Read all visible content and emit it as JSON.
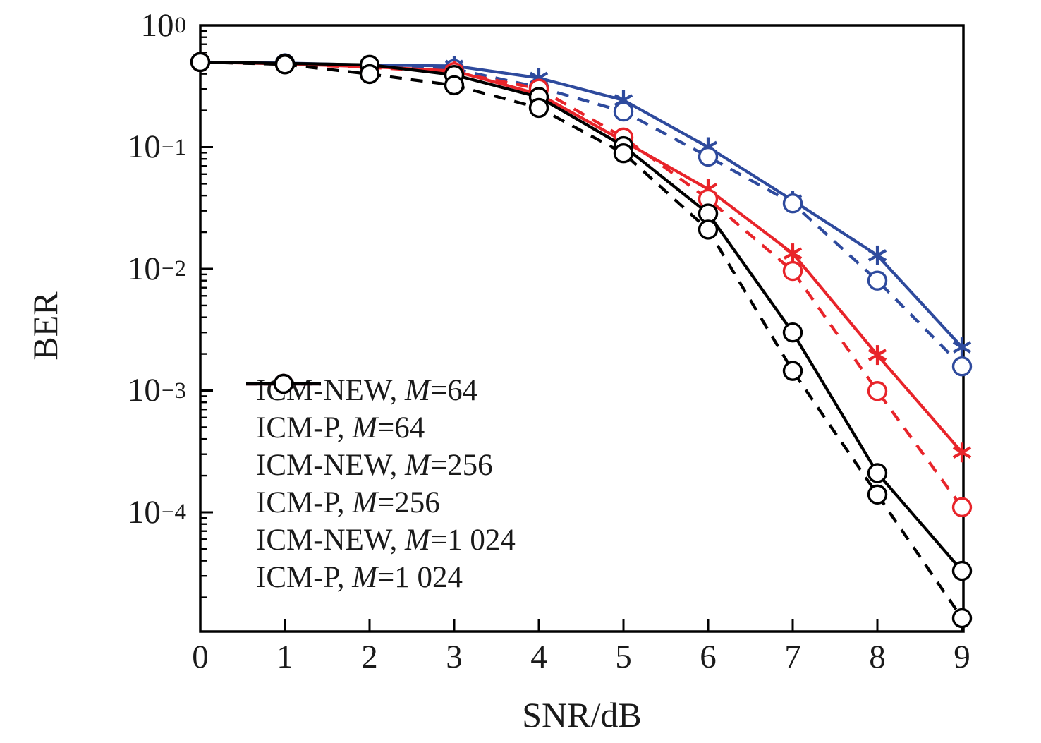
{
  "figure": {
    "background": "#ffffff",
    "text_color": "#1a1a1a"
  },
  "axes": {
    "x": {
      "label": "SNR/dB",
      "ticks": [
        "0",
        "1",
        "2",
        "3",
        "4",
        "5",
        "6",
        "7",
        "8",
        "9"
      ]
    },
    "y": {
      "label": "BER",
      "ticks": [
        {
          "base": "10",
          "exp": "0"
        },
        {
          "base": "10",
          "exp": "−1"
        },
        {
          "base": "10",
          "exp": "−2"
        },
        {
          "base": "10",
          "exp": "−3"
        },
        {
          "base": "10",
          "exp": "−4"
        }
      ],
      "tick_exponents": [
        0,
        -1,
        -2,
        -3,
        -4
      ]
    }
  },
  "chart_data": {
    "type": "line",
    "title": "",
    "xlabel": "SNR/dB",
    "ylabel": "BER",
    "x": [
      0,
      1,
      2,
      3,
      4,
      5,
      6,
      7,
      8,
      9
    ],
    "xlim": [
      0,
      9
    ],
    "ylim": [
      1.05e-05,
      1
    ],
    "yscale": "log",
    "grid": false,
    "legend_position": "lower-left-inside",
    "legend_border": false,
    "series": [
      {
        "name": "ICM-NEW, M=64",
        "color": "#2e4a9d",
        "line": "solid",
        "marker": "asterisk",
        "values": [
          0.5,
          0.49,
          0.472,
          0.465,
          0.37,
          0.243,
          0.1,
          0.0365,
          0.0129,
          0.00227
        ]
      },
      {
        "name": "ICM-P, M=64",
        "color": "#2e4a9d",
        "line": "dashed",
        "marker": "circle",
        "values": [
          0.5,
          0.488,
          0.468,
          0.438,
          0.31,
          0.196,
          0.0835,
          0.0345,
          0.008,
          0.00158
        ]
      },
      {
        "name": "ICM-NEW, M=256",
        "color": "#e8242a",
        "line": "solid",
        "marker": "asterisk",
        "values": [
          0.5,
          0.483,
          0.458,
          0.422,
          0.272,
          0.112,
          0.0452,
          0.0134,
          0.00196,
          0.00031
        ]
      },
      {
        "name": "ICM-P, M=256",
        "color": "#e8242a",
        "line": "dashed",
        "marker": "circle",
        "values": [
          0.5,
          0.48,
          0.452,
          0.413,
          0.302,
          0.12,
          0.0375,
          0.0096,
          0.00099,
          0.00011
        ]
      },
      {
        "name": "ICM-NEW, M=1 024",
        "color": "#000000",
        "line": "solid",
        "marker": "circle",
        "values": [
          0.5,
          0.487,
          0.475,
          0.392,
          0.258,
          0.102,
          0.0285,
          0.003,
          0.00021,
          3.3e-05
        ]
      },
      {
        "name": "ICM-P, M=1 024",
        "color": "#000000",
        "line": "dashed",
        "marker": "circle",
        "values": [
          0.5,
          0.478,
          0.398,
          0.322,
          0.21,
          0.089,
          0.021,
          0.00145,
          0.00014,
          1.35e-05
        ]
      }
    ]
  }
}
